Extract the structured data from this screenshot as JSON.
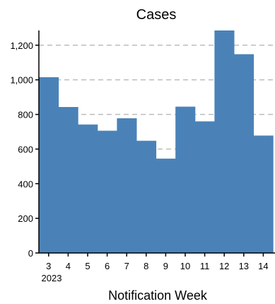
{
  "chart_data": {
    "type": "bar",
    "title": "Cases",
    "xlabel": "Notification Week",
    "ylabel": "",
    "year_label": "2023",
    "categories": [
      "3",
      "4",
      "5",
      "6",
      "7",
      "8",
      "9",
      "10",
      "11",
      "12",
      "13",
      "14"
    ],
    "values": [
      1015,
      843,
      742,
      706,
      778,
      648,
      545,
      845,
      760,
      1285,
      1148,
      678
    ],
    "ylim": [
      0,
      1285
    ],
    "yticks": [
      0,
      200,
      400,
      600,
      800,
      1000,
      1200
    ],
    "ytick_labels": [
      "0",
      "200",
      "400",
      "600",
      "800",
      "1,000",
      "1,200"
    ],
    "grid": true,
    "bar_color": "#4a82b8",
    "grid_color": "#bdbdbd"
  }
}
